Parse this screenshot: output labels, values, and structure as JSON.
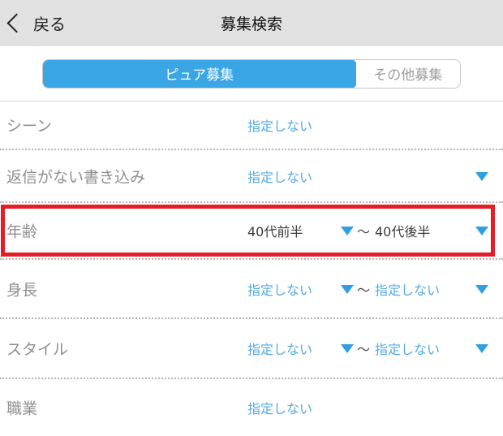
{
  "header": {
    "back_label": "戻る",
    "title": "募集検索"
  },
  "tabs": [
    {
      "label": "ピュア募集",
      "active": true
    },
    {
      "label": "その他募集",
      "active": false
    }
  ],
  "rows": [
    {
      "label": "シーン",
      "value": "指定しない",
      "has_arrow": false
    },
    {
      "label": "返信がない書き込み",
      "value": "指定しない",
      "has_arrow": true
    },
    {
      "label": "年齢",
      "from": "40代前半",
      "separator": "～",
      "to": "40代後半",
      "highlighted": true
    },
    {
      "label": "身長",
      "from": "指定しない",
      "separator": "～",
      "to": "指定しない"
    },
    {
      "label": "スタイル",
      "from": "指定しない",
      "separator": "～",
      "to": "指定しない"
    },
    {
      "label": "職業",
      "value": "指定しない",
      "has_arrow": false
    }
  ],
  "colors": {
    "header_bg": "#e1e1e1",
    "tab_active_bg": "#3ba6e6",
    "link_blue": "#54aae3",
    "arrow_blue": "#2e9fe4",
    "selected_text": "#3a3a3a",
    "label_gray": "#8f8f8f",
    "highlight_red": "#e81c24"
  }
}
